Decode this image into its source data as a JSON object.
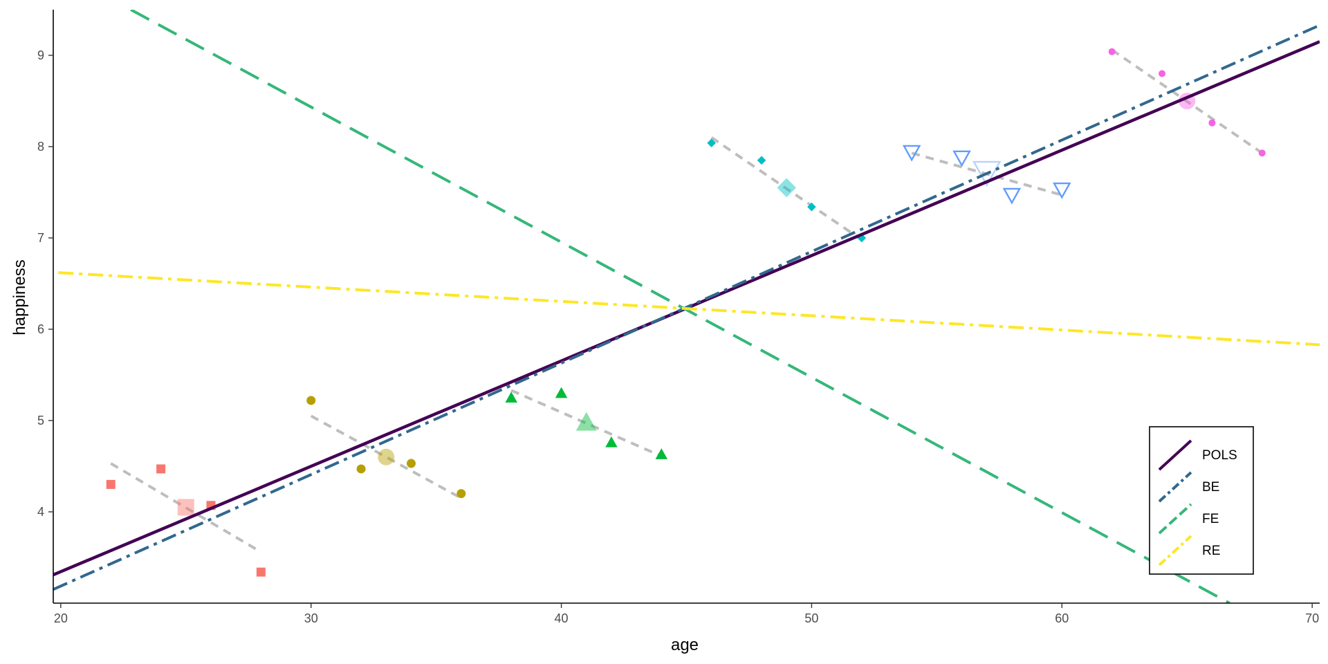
{
  "chart_data": {
    "type": "scatter",
    "title": "",
    "xlabel": "age",
    "ylabel": "happiness",
    "xlim": [
      19.7,
      70.3
    ],
    "ylim": [
      3.0,
      9.5
    ],
    "x_ticks": [
      20,
      30,
      40,
      50,
      60,
      70
    ],
    "y_ticks": [
      4,
      5,
      6,
      7,
      8,
      9
    ],
    "grid": false,
    "legend_position": "bottom-right",
    "groups": [
      {
        "color": "#F8766D",
        "shape": "square",
        "points": [
          [
            22,
            4.3
          ],
          [
            24,
            4.47
          ],
          [
            26,
            4.07
          ],
          [
            28,
            3.34
          ]
        ],
        "mean": [
          25,
          4.05
        ],
        "within_fit": [
          [
            22,
            4.53
          ],
          [
            28,
            3.56
          ]
        ]
      },
      {
        "color": "#B79F00",
        "shape": "circle",
        "points": [
          [
            30,
            5.22
          ],
          [
            32,
            4.47
          ],
          [
            34,
            4.53
          ],
          [
            36,
            4.2
          ]
        ],
        "mean": [
          33,
          4.6
        ],
        "within_fit": [
          [
            30,
            5.05
          ],
          [
            36,
            4.15
          ]
        ]
      },
      {
        "color": "#00BA38",
        "shape": "triangle",
        "points": [
          [
            38,
            5.25
          ],
          [
            40,
            5.3
          ],
          [
            42,
            4.76
          ],
          [
            44,
            4.63
          ]
        ],
        "mean": [
          41,
          4.98
        ],
        "within_fit": [
          [
            38,
            5.33
          ],
          [
            44,
            4.61
          ]
        ]
      },
      {
        "color": "#00BFC4",
        "shape": "diamond",
        "points": [
          [
            46,
            8.04
          ],
          [
            48,
            7.85
          ],
          [
            50,
            7.34
          ],
          [
            52,
            7.0
          ]
        ],
        "mean": [
          49,
          7.55
        ],
        "within_fit": [
          [
            46,
            8.1
          ],
          [
            52,
            6.98
          ]
        ]
      },
      {
        "color": "#619CFF",
        "shape": "triangle-down",
        "points": [
          [
            54,
            7.94
          ],
          [
            56,
            7.88
          ],
          [
            58,
            7.47
          ],
          [
            60,
            7.53
          ]
        ],
        "mean": [
          57,
          7.72
        ],
        "within_fit": [
          [
            54,
            7.93
          ],
          [
            60,
            7.47
          ]
        ]
      },
      {
        "color": "#F564E3",
        "shape": "circle",
        "points": [
          [
            62,
            9.04
          ],
          [
            64,
            8.8
          ],
          [
            66,
            8.26
          ],
          [
            68,
            7.93
          ]
        ],
        "mean": [
          65,
          8.5
        ],
        "within_fit": [
          [
            62,
            9.06
          ],
          [
            68,
            7.93
          ]
        ]
      }
    ],
    "series": [
      {
        "name": "POLS",
        "color": "#440154",
        "style": "solid",
        "x": [
          19.7,
          70.3
        ],
        "y": [
          3.31,
          9.15
        ]
      },
      {
        "name": "BE",
        "color": "#31688E",
        "style": "dashdot",
        "x": [
          19.7,
          70.3
        ],
        "y": [
          3.15,
          9.33
        ]
      },
      {
        "name": "FE",
        "color": "#35B779",
        "style": "longdash",
        "x": [
          22.8,
          66.7
        ],
        "y": [
          9.5,
          3.0
        ]
      },
      {
        "name": "RE",
        "color": "#FDE725",
        "style": "dashdot",
        "x": [
          19.9,
          70.3
        ],
        "y": [
          6.62,
          5.83
        ]
      }
    ]
  }
}
